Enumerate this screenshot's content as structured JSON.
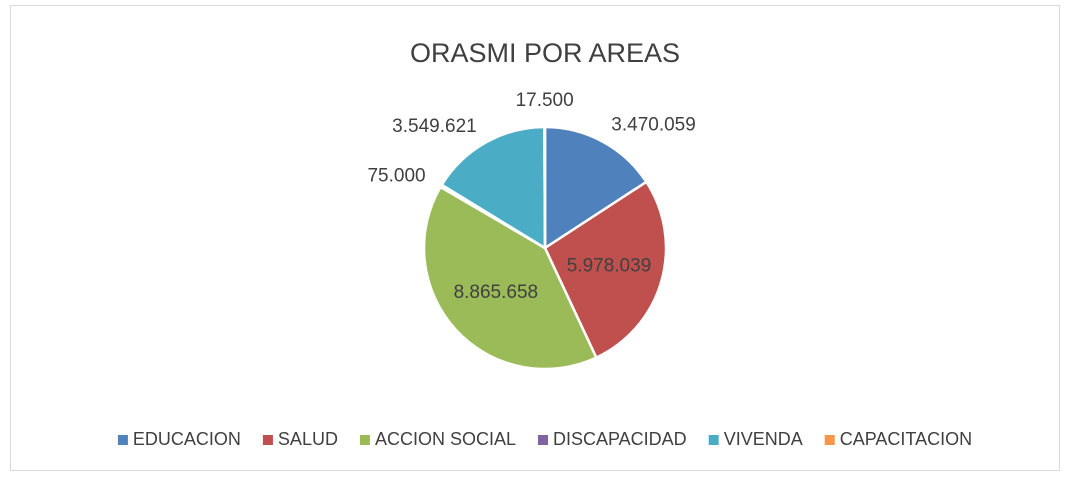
{
  "chart_data": {
    "type": "pie",
    "title": "ORASMI POR AREAS",
    "categories": [
      "EDUCACION",
      "SALUD",
      "ACCION SOCIAL",
      "DISCAPACIDAD",
      "VIVENDA",
      "CAPACITACION"
    ],
    "values": [
      3470059,
      5978039,
      8865658,
      75000,
      3549621,
      17500
    ],
    "value_labels": [
      "3.470.059",
      "5.978.039",
      "8.865.658",
      "75.000",
      "3.549.621",
      "17.500"
    ],
    "colors": [
      "#4f81bd",
      "#c0504d",
      "#9bbb59",
      "#8064a2",
      "#4bacc6",
      "#f79646"
    ],
    "legend": "bottom"
  }
}
